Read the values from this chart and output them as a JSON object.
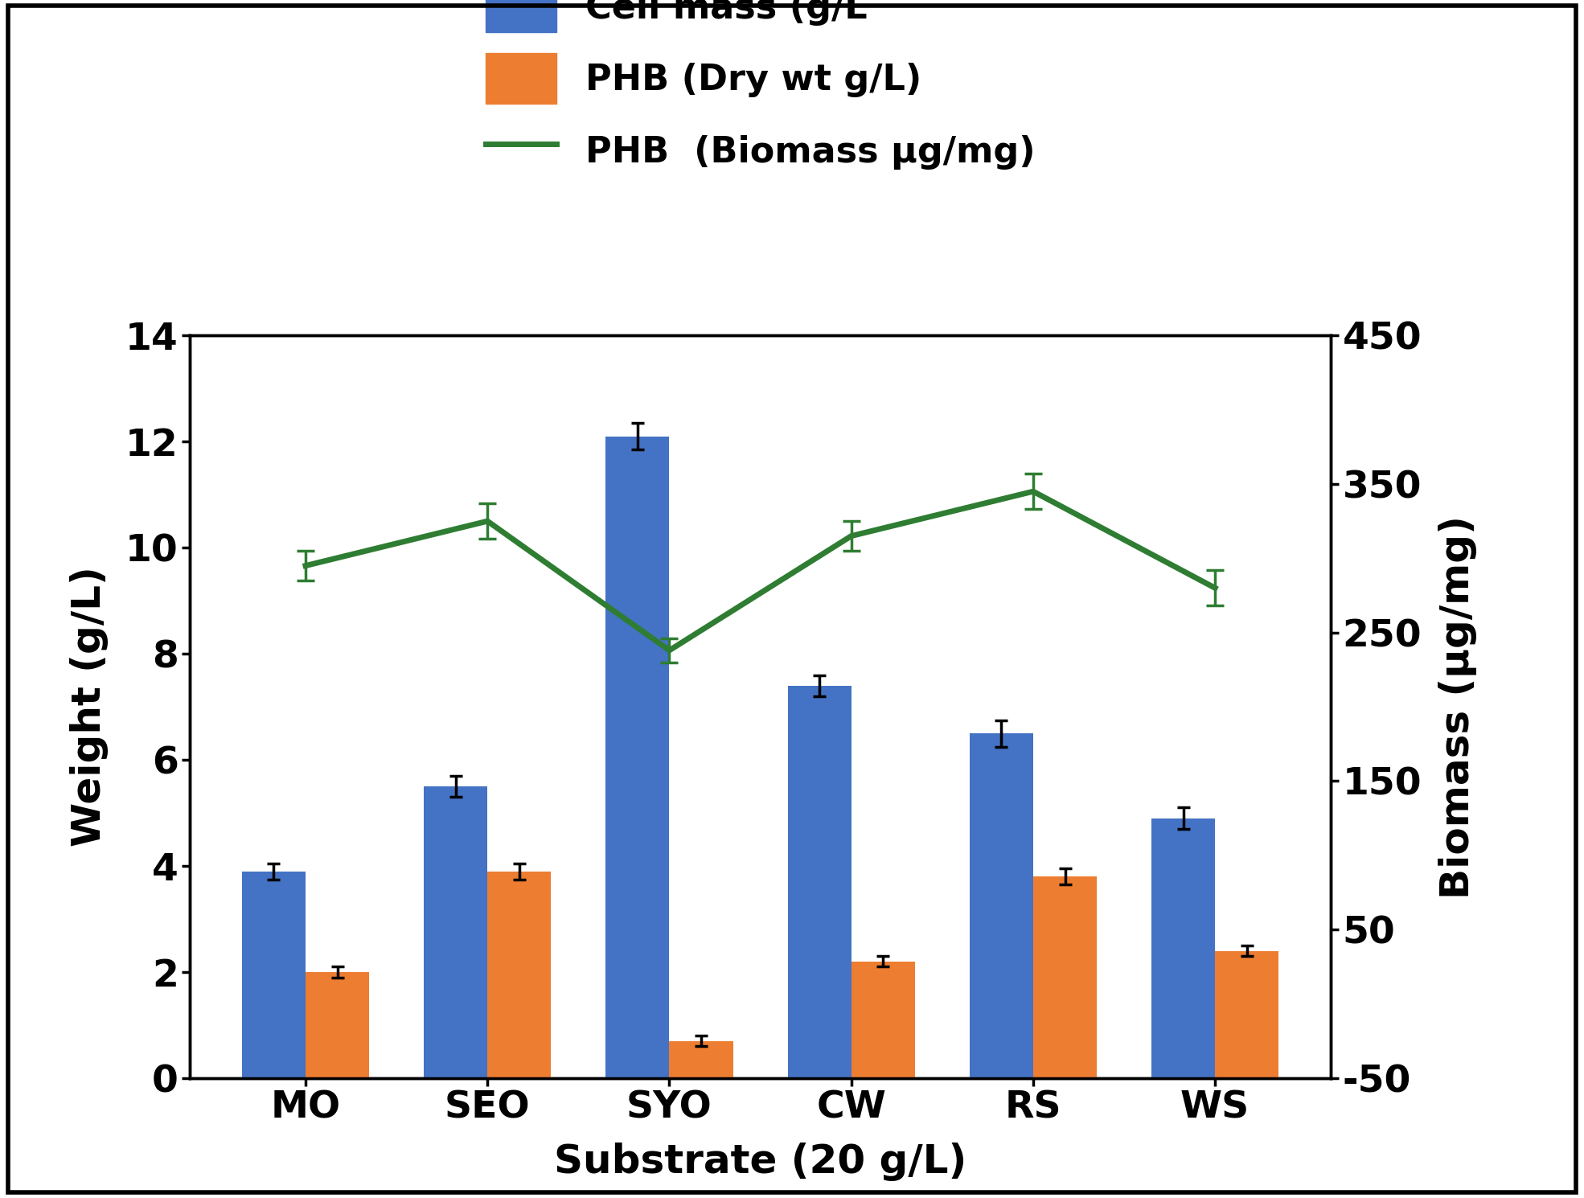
{
  "categories": [
    "MO",
    "SEO",
    "SYO",
    "CW",
    "RS",
    "WS"
  ],
  "cell_mass": [
    3.9,
    5.5,
    12.1,
    7.4,
    6.5,
    4.9
  ],
  "cell_mass_err": [
    0.15,
    0.2,
    0.25,
    0.2,
    0.25,
    0.2
  ],
  "phb_dry": [
    2.0,
    3.9,
    0.7,
    2.2,
    3.8,
    2.4
  ],
  "phb_dry_err": [
    0.1,
    0.15,
    0.1,
    0.1,
    0.15,
    0.1
  ],
  "phb_biomass": [
    295,
    325,
    238,
    315,
    345,
    280
  ],
  "phb_biomass_err": [
    10,
    12,
    8,
    10,
    12,
    12
  ],
  "bar_color_blue": "#4472C4",
  "bar_color_orange": "#ED7D31",
  "line_color_green": "#2E7D32",
  "ylabel_left": "Weight (g/L)",
  "ylabel_right": "Biomass (μg/mg)",
  "xlabel": "Substrate (20 g/L)",
  "ylim_left": [
    0,
    14
  ],
  "ylim_right": [
    -50,
    450
  ],
  "yticks_left": [
    0,
    2,
    4,
    6,
    8,
    10,
    12,
    14
  ],
  "yticks_right": [
    -50,
    50,
    150,
    250,
    350,
    450
  ],
  "legend_labels": [
    "Cell mass (g/L",
    "PHB (Dry wt g/L)",
    "PHB  (Biomass μg/mg)"
  ],
  "bar_width": 0.35,
  "figsize": [
    19.7,
    14.9
  ],
  "dpi": 100,
  "background_color": "#ffffff",
  "border_color": "#000000"
}
